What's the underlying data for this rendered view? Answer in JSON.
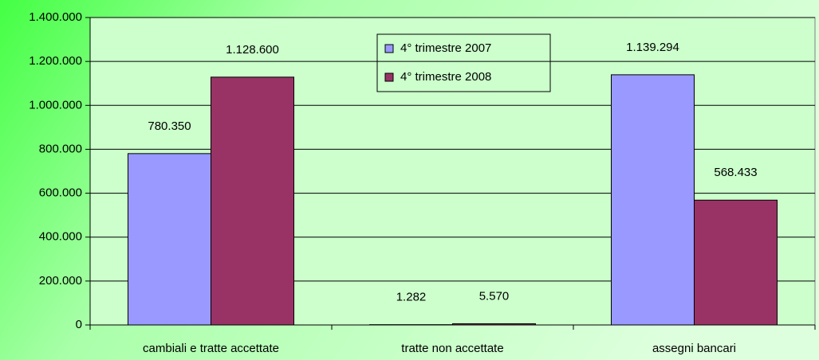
{
  "chart_data": {
    "type": "bar",
    "categories": [
      "cambiali e tratte accettate",
      "tratte non accettate",
      "assegni bancari"
    ],
    "series": [
      {
        "name": "4° trimestre 2007",
        "color": "#9999ff",
        "values": [
          780350,
          1282,
          1139294
        ],
        "value_labels": [
          "780.350",
          "1.282",
          "1.139.294"
        ]
      },
      {
        "name": "4° trimestre 2008",
        "color": "#993366",
        "values": [
          1128600,
          5570,
          568433
        ],
        "value_labels": [
          "1.128.600",
          "5.570",
          "568.433"
        ]
      }
    ],
    "ylim": [
      0,
      1400000
    ],
    "yticks": [
      0,
      {
        "value": 200000,
        "label": "200.000"
      },
      {
        "value": 400000,
        "label": "400.000"
      },
      {
        "value": 600000,
        "label": "600.000"
      },
      {
        "value": 800000,
        "label": "800.000"
      },
      {
        "value": 1000000,
        "label": "1.000.000"
      },
      {
        "value": 1200000,
        "label": "1.200.000"
      },
      {
        "value": 1400000,
        "label": "1.400.000"
      }
    ],
    "grid": true,
    "legend": "top"
  }
}
